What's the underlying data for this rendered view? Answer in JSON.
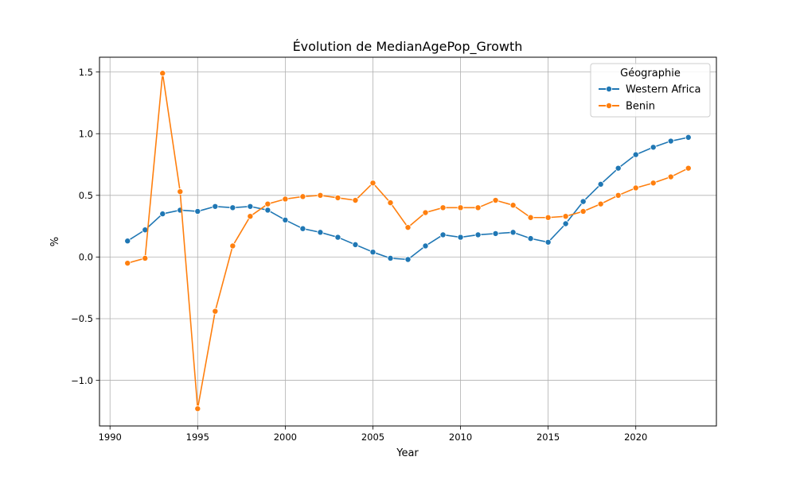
{
  "chart_data": {
    "type": "line",
    "title": "Évolution de MedianAgePop_Growth",
    "xlabel": "Year",
    "ylabel": "%",
    "xlim": [
      1989.4,
      2024.6
    ],
    "ylim": [
      -1.37,
      1.62
    ],
    "x_ticks": [
      1990,
      1995,
      2000,
      2005,
      2010,
      2015,
      2020
    ],
    "y_ticks": [
      -1.0,
      -0.5,
      0.0,
      0.5,
      1.0,
      1.5
    ],
    "x_tick_labels": [
      "1990",
      "1995",
      "2000",
      "2005",
      "2010",
      "2015",
      "2020"
    ],
    "y_tick_labels": [
      "−1.0",
      "−0.5",
      "0.0",
      "0.5",
      "1.0",
      "1.5"
    ],
    "grid": true,
    "legend": {
      "title": "Géographie",
      "placement": "top-right"
    },
    "x": [
      1991,
      1992,
      1993,
      1994,
      1995,
      1996,
      1997,
      1998,
      1999,
      2000,
      2001,
      2002,
      2003,
      2004,
      2005,
      2006,
      2007,
      2008,
      2009,
      2010,
      2011,
      2012,
      2013,
      2014,
      2015,
      2016,
      2017,
      2018,
      2019,
      2020,
      2021,
      2022,
      2023
    ],
    "series": [
      {
        "name": "Western Africa",
        "color": "#1f77b4",
        "values": [
          0.13,
          0.22,
          0.35,
          0.38,
          0.37,
          0.41,
          0.4,
          0.41,
          0.38,
          0.3,
          0.23,
          0.2,
          0.16,
          0.1,
          0.04,
          -0.01,
          -0.02,
          0.09,
          0.18,
          0.16,
          0.18,
          0.19,
          0.2,
          0.15,
          0.12,
          0.27,
          0.45,
          0.59,
          0.72,
          0.83,
          0.89,
          0.94,
          0.97
        ]
      },
      {
        "name": "Benin",
        "color": "#ff7f0e",
        "values": [
          -0.05,
          -0.01,
          1.49,
          0.53,
          -1.23,
          -0.44,
          0.09,
          0.33,
          0.43,
          0.47,
          0.49,
          0.5,
          0.48,
          0.46,
          0.6,
          0.44,
          0.24,
          0.36,
          0.4,
          0.4,
          0.4,
          0.46,
          0.42,
          0.32,
          0.32,
          0.33,
          0.37,
          0.43,
          0.5,
          0.56,
          0.6,
          0.65,
          0.72
        ]
      }
    ]
  }
}
